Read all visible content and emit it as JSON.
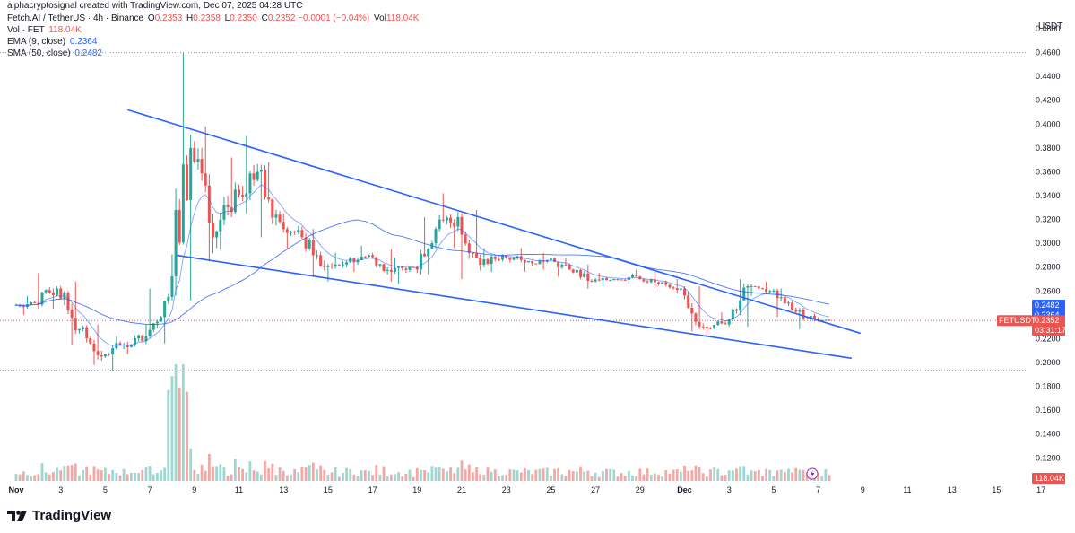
{
  "credit": "alphacryptosignal created with TradingView.com, Dec 07, 2025 04:28 UTC",
  "legend": {
    "symbol": "Fetch.AI / TetherUS · 4h · Binance",
    "O_label": "O",
    "O": "0.2353",
    "H_label": "H",
    "H": "0.2358",
    "L_label": "L",
    "L": "0.2350",
    "C_label": "C",
    "C": "0.2352",
    "change": "−0.0001 (−0.04%)",
    "vol_label": "Vol",
    "vol_value": "118.04K",
    "vol_fet_label": "Vol · FET",
    "vol_fet_value": "118.04K",
    "ema_label": "EMA (9, close)",
    "ema_value": "0.2364",
    "sma_label": "SMA (50, close)",
    "sma_value": "0.2482"
  },
  "axis_currency": "USDT",
  "brand": "TradingView",
  "tags": {
    "sma": "0.2482",
    "ema": "0.2364",
    "symbol": "FETUSDT",
    "price": "0.2352",
    "countdown": "03:31:17",
    "volume": "118.04K"
  },
  "colors": {
    "up": "#26a69a",
    "down": "#ef5350",
    "trendline": "#2962ff",
    "sma": "#2962ff",
    "ema": "#2962ff",
    "volume_up": "#9fd6d0",
    "volume_down": "#f4a8a6"
  },
  "chart_data": {
    "type": "candlestick",
    "symbol": "FETUSDT",
    "timeframe": "4h",
    "y_ticks": [
      "0.4800",
      "0.4600",
      "0.4400",
      "0.4200",
      "0.4000",
      "0.3800",
      "0.3600",
      "0.3400",
      "0.3200",
      "0.3000",
      "0.2800",
      "0.2600",
      "0.2200",
      "0.2000",
      "0.1800",
      "0.1600",
      "0.1400",
      "0.1200"
    ],
    "x_ticks": [
      "Nov",
      "3",
      "5",
      "7",
      "9",
      "11",
      "13",
      "15",
      "17",
      "19",
      "21",
      "23",
      "25",
      "27",
      "29",
      "Dec",
      "3",
      "5",
      "7",
      "9",
      "11",
      "13",
      "15",
      "17"
    ],
    "ylim": [
      0.1,
      0.49
    ],
    "x_range_days": [
      "2025-11-01",
      "2025-12-17"
    ],
    "last_candle_day": "2025-12-07",
    "price_levels": {
      "dotted_high": 0.46,
      "dotted_low": 0.1935,
      "current": 0.2352
    },
    "daily_ohlc": [
      {
        "d": "2025-11-01",
        "o": 0.248,
        "h": 0.256,
        "l": 0.24,
        "c": 0.25
      },
      {
        "d": "2025-11-02",
        "o": 0.25,
        "h": 0.275,
        "l": 0.245,
        "c": 0.262
      },
      {
        "d": "2025-11-03",
        "o": 0.262,
        "h": 0.268,
        "l": 0.215,
        "c": 0.228
      },
      {
        "d": "2025-11-04",
        "o": 0.228,
        "h": 0.232,
        "l": 0.198,
        "c": 0.205
      },
      {
        "d": "2025-11-05",
        "o": 0.205,
        "h": 0.222,
        "l": 0.193,
        "c": 0.215
      },
      {
        "d": "2025-11-06",
        "o": 0.215,
        "h": 0.232,
        "l": 0.207,
        "c": 0.222
      },
      {
        "d": "2025-11-07",
        "o": 0.222,
        "h": 0.262,
        "l": 0.216,
        "c": 0.255
      },
      {
        "d": "2025-11-08",
        "o": 0.255,
        "h": 0.46,
        "l": 0.252,
        "c": 0.38
      },
      {
        "d": "2025-11-09",
        "o": 0.38,
        "h": 0.398,
        "l": 0.285,
        "c": 0.305
      },
      {
        "d": "2025-11-10",
        "o": 0.305,
        "h": 0.372,
        "l": 0.295,
        "c": 0.345
      },
      {
        "d": "2025-11-11",
        "o": 0.345,
        "h": 0.39,
        "l": 0.325,
        "c": 0.36
      },
      {
        "d": "2025-11-12",
        "o": 0.36,
        "h": 0.368,
        "l": 0.305,
        "c": 0.318
      },
      {
        "d": "2025-11-13",
        "o": 0.318,
        "h": 0.325,
        "l": 0.295,
        "c": 0.305
      },
      {
        "d": "2025-11-14",
        "o": 0.305,
        "h": 0.312,
        "l": 0.272,
        "c": 0.28
      },
      {
        "d": "2025-11-15",
        "o": 0.28,
        "h": 0.292,
        "l": 0.268,
        "c": 0.284
      },
      {
        "d": "2025-11-16",
        "o": 0.284,
        "h": 0.298,
        "l": 0.276,
        "c": 0.29
      },
      {
        "d": "2025-11-17",
        "o": 0.29,
        "h": 0.295,
        "l": 0.268,
        "c": 0.276
      },
      {
        "d": "2025-11-18",
        "o": 0.276,
        "h": 0.288,
        "l": 0.266,
        "c": 0.28
      },
      {
        "d": "2025-11-19",
        "o": 0.28,
        "h": 0.322,
        "l": 0.274,
        "c": 0.312
      },
      {
        "d": "2025-11-20",
        "o": 0.312,
        "h": 0.342,
        "l": 0.296,
        "c": 0.322
      },
      {
        "d": "2025-11-21",
        "o": 0.322,
        "h": 0.328,
        "l": 0.27,
        "c": 0.282
      },
      {
        "d": "2025-11-22",
        "o": 0.282,
        "h": 0.296,
        "l": 0.276,
        "c": 0.29
      },
      {
        "d": "2025-11-23",
        "o": 0.29,
        "h": 0.296,
        "l": 0.276,
        "c": 0.284
      },
      {
        "d": "2025-11-24",
        "o": 0.284,
        "h": 0.292,
        "l": 0.278,
        "c": 0.286
      },
      {
        "d": "2025-11-25",
        "o": 0.286,
        "h": 0.288,
        "l": 0.272,
        "c": 0.278
      },
      {
        "d": "2025-11-26",
        "o": 0.278,
        "h": 0.282,
        "l": 0.262,
        "c": 0.268
      },
      {
        "d": "2025-11-27",
        "o": 0.268,
        "h": 0.275,
        "l": 0.264,
        "c": 0.27
      },
      {
        "d": "2025-11-28",
        "o": 0.27,
        "h": 0.278,
        "l": 0.266,
        "c": 0.272
      },
      {
        "d": "2025-11-29",
        "o": 0.272,
        "h": 0.276,
        "l": 0.262,
        "c": 0.266
      },
      {
        "d": "2025-11-30",
        "o": 0.266,
        "h": 0.27,
        "l": 0.258,
        "c": 0.262
      },
      {
        "d": "2025-12-01",
        "o": 0.262,
        "h": 0.264,
        "l": 0.226,
        "c": 0.23
      },
      {
        "d": "2025-12-02",
        "o": 0.23,
        "h": 0.242,
        "l": 0.222,
        "c": 0.232
      },
      {
        "d": "2025-12-03",
        "o": 0.232,
        "h": 0.27,
        "l": 0.23,
        "c": 0.264
      },
      {
        "d": "2025-12-04",
        "o": 0.264,
        "h": 0.268,
        "l": 0.256,
        "c": 0.26
      },
      {
        "d": "2025-12-05",
        "o": 0.26,
        "h": 0.262,
        "l": 0.238,
        "c": 0.244
      },
      {
        "d": "2025-12-06",
        "o": 0.244,
        "h": 0.246,
        "l": 0.228,
        "c": 0.236
      },
      {
        "d": "2025-12-07",
        "o": 0.236,
        "h": 0.238,
        "l": 0.234,
        "c": 0.2352
      }
    ],
    "trendlines": [
      {
        "name": "upper",
        "from": {
          "d": "2025-11-06",
          "y": 0.412
        },
        "to": {
          "d": "2025-12-08.9",
          "y": 0.2245
        }
      },
      {
        "name": "lower",
        "from": {
          "d": "2025-11-08.2",
          "y": 0.29
        },
        "to": {
          "d": "2025-12-08.5",
          "y": 0.2035
        }
      }
    ]
  }
}
